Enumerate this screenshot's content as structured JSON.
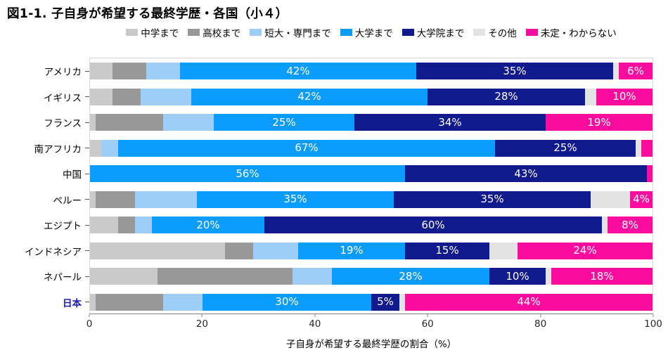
{
  "title": "図1-1. 子自身が希望する最終学歴・各国（小４）",
  "chart_data": {
    "type": "bar",
    "orientation": "horizontal-stacked",
    "title": "図1-1. 子自身が希望する最終学歴・各国（小４）",
    "xlabel": "子自身が希望する最終学歴の割合（%）",
    "xlim": [
      0,
      100
    ],
    "xticks": [
      "0",
      "20",
      "40",
      "60",
      "80",
      "100"
    ],
    "legend_position": "top",
    "grid": false,
    "label_min_value": 4,
    "highlight": {
      "category": "日本",
      "color": "#1a1aad"
    },
    "categories": [
      "アメリカ",
      "イギリス",
      "フランス",
      "南アフリカ",
      "中国",
      "ペルー",
      "エジプト",
      "インドネシア",
      "ネパール",
      "日本"
    ],
    "series": [
      {
        "name": "中学まで",
        "color": "#c9c9c9",
        "show_labels": false,
        "values": [
          4,
          4,
          1,
          2,
          0,
          1,
          5,
          24,
          12,
          1
        ]
      },
      {
        "name": "高校まで",
        "color": "#989898",
        "show_labels": false,
        "values": [
          6,
          5,
          12,
          0,
          0,
          7,
          3,
          5,
          24,
          12
        ]
      },
      {
        "name": "短大・専門まで",
        "color": "#9dccf7",
        "show_labels": false,
        "values": [
          6,
          9,
          9,
          3,
          0,
          11,
          3,
          8,
          7,
          7
        ]
      },
      {
        "name": "大学まで",
        "color": "#0a9cfc",
        "show_labels": true,
        "values": [
          42,
          42,
          25,
          67,
          56,
          35,
          20,
          19,
          28,
          30
        ]
      },
      {
        "name": "大学院まで",
        "color": "#101a8c",
        "show_labels": true,
        "values": [
          35,
          28,
          34,
          25,
          43,
          35,
          60,
          15,
          10,
          5
        ]
      },
      {
        "name": "その他",
        "color": "#e3e3e3",
        "show_labels": false,
        "values": [
          1,
          2,
          0,
          1,
          0,
          7,
          1,
          5,
          1,
          1
        ]
      },
      {
        "name": "未定・わからない",
        "color": "#fa0d9e",
        "show_labels": true,
        "values": [
          6,
          10,
          19,
          2,
          1,
          4,
          8,
          24,
          18,
          44
        ]
      }
    ]
  }
}
